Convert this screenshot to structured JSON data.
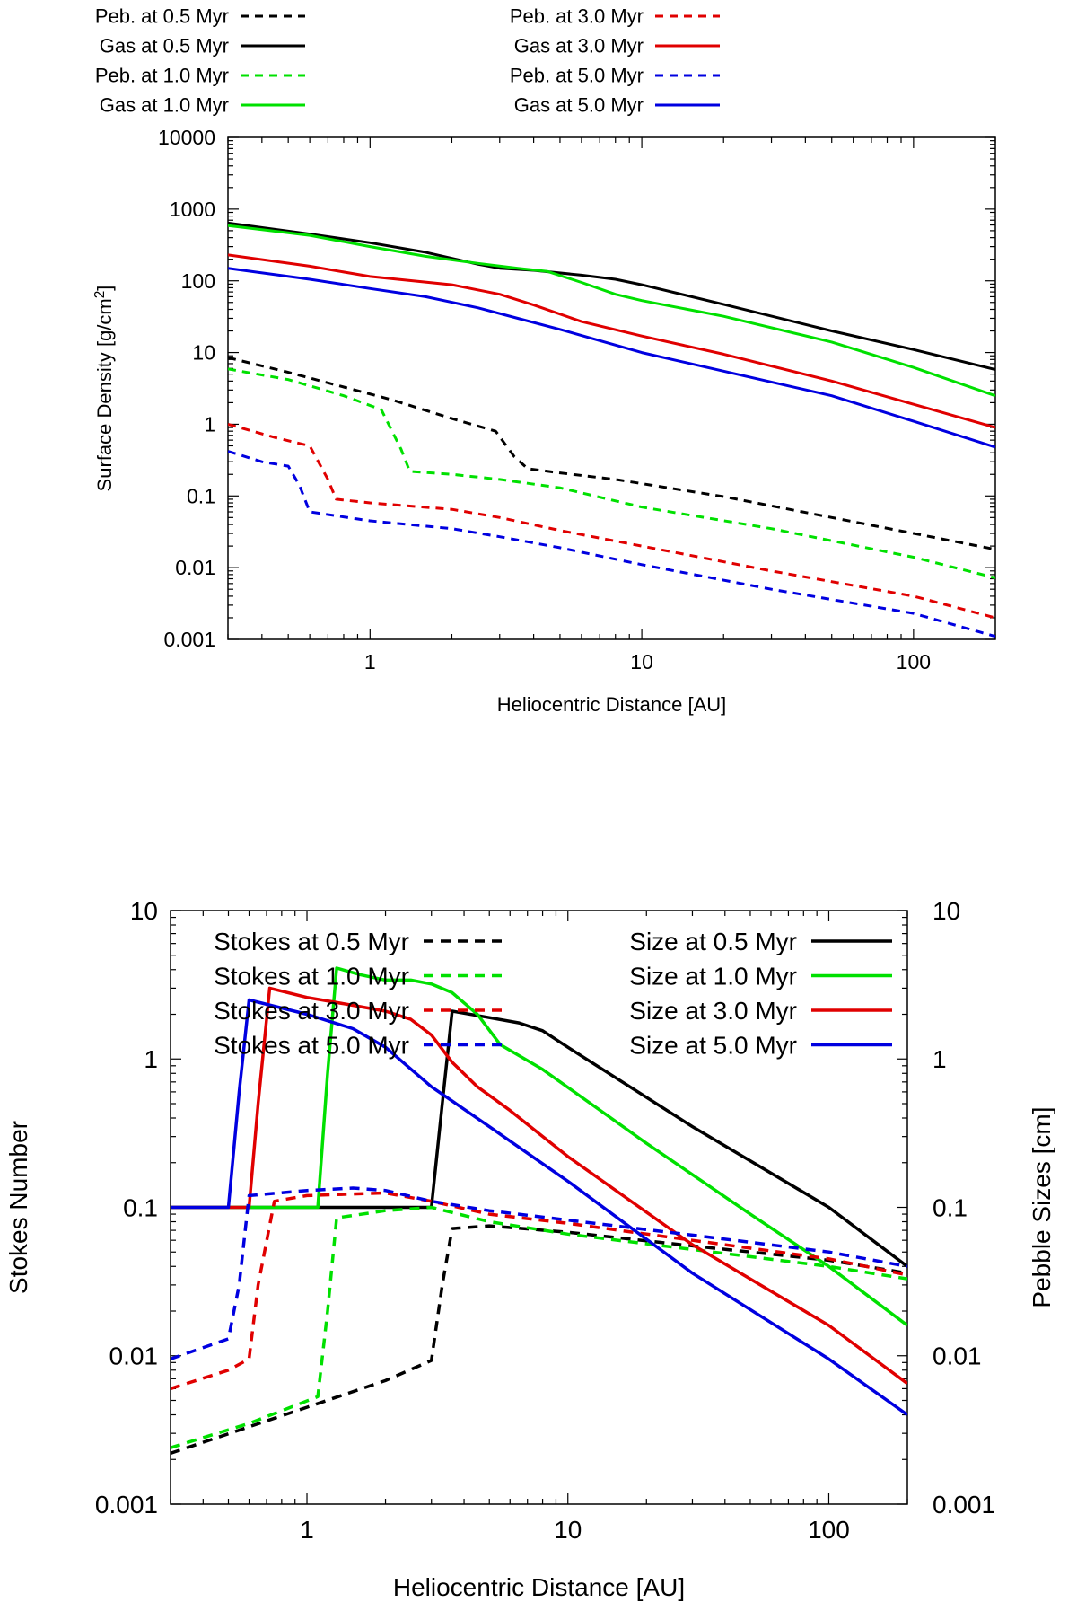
{
  "chart_data": [
    {
      "type": "line",
      "title": "",
      "xlabel": "Heliocentric Distance [AU]",
      "ylabel": "Surface Density [g/cm",
      "ylabel_sup": "2",
      "ylabel_end": "]",
      "xscale": "log",
      "yscale": "log",
      "xlim": [
        0.3,
        200
      ],
      "ylim": [
        0.001,
        10000
      ],
      "x_ticks": [
        {
          "value": 1,
          "label": "1"
        },
        {
          "value": 10,
          "label": "10"
        },
        {
          "value": 100,
          "label": "100"
        }
      ],
      "y_ticks": [
        {
          "value": 0.001,
          "label": "0.001"
        },
        {
          "value": 0.01,
          "label": "0.01"
        },
        {
          "value": 0.1,
          "label": "0.1"
        },
        {
          "value": 1,
          "label": "1"
        },
        {
          "value": 10,
          "label": "10"
        },
        {
          "value": 100,
          "label": "100"
        },
        {
          "value": 1000,
          "label": "1000"
        },
        {
          "value": 10000,
          "label": "10000"
        }
      ],
      "legend_position": "top",
      "series": [
        {
          "name": "Peb. at 0.5 Myr",
          "color": "#000000",
          "style": "dashed",
          "points": [
            [
              0.3,
              8.5
            ],
            [
              0.5,
              5.3
            ],
            [
              0.8,
              3.3
            ],
            [
              1.2,
              2.2
            ],
            [
              2.0,
              1.2
            ],
            [
              2.9,
              0.8
            ],
            [
              3.4,
              0.35
            ],
            [
              3.8,
              0.24
            ],
            [
              5,
              0.21
            ],
            [
              8,
              0.17
            ],
            [
              20,
              0.098
            ],
            [
              50,
              0.05
            ],
            [
              100,
              0.03
            ],
            [
              200,
              0.018
            ]
          ]
        },
        {
          "name": "Gas at 0.5 Myr",
          "color": "#000000",
          "style": "solid",
          "points": [
            [
              0.3,
              640
            ],
            [
              0.6,
              450
            ],
            [
              1,
              340
            ],
            [
              1.6,
              250
            ],
            [
              2.5,
              170
            ],
            [
              3,
              150
            ],
            [
              4,
              140
            ],
            [
              6,
              120
            ],
            [
              8,
              105
            ],
            [
              10,
              88
            ],
            [
              20,
              47
            ],
            [
              50,
              20
            ],
            [
              100,
              11
            ],
            [
              200,
              5.8
            ]
          ]
        },
        {
          "name": "Peb. at 1.0 Myr",
          "color": "#00e000",
          "style": "dashed",
          "points": [
            [
              0.3,
              5.9
            ],
            [
              0.5,
              4.2
            ],
            [
              0.8,
              2.5
            ],
            [
              1.1,
              1.6
            ],
            [
              1.3,
              0.45
            ],
            [
              1.4,
              0.22
            ],
            [
              2,
              0.2
            ],
            [
              3,
              0.17
            ],
            [
              5,
              0.13
            ],
            [
              10,
              0.07
            ],
            [
              30,
              0.035
            ],
            [
              100,
              0.014
            ],
            [
              200,
              0.0072
            ]
          ]
        },
        {
          "name": "Gas at 1.0 Myr",
          "color": "#00e000",
          "style": "solid",
          "points": [
            [
              0.3,
              590
            ],
            [
              0.6,
              430
            ],
            [
              1,
              300
            ],
            [
              1.6,
              220
            ],
            [
              2.5,
              175
            ],
            [
              3.5,
              150
            ],
            [
              4.5,
              135
            ],
            [
              6,
              95
            ],
            [
              8,
              65
            ],
            [
              10,
              53
            ],
            [
              20,
              32
            ],
            [
              50,
              14
            ],
            [
              100,
              6.2
            ],
            [
              200,
              2.5
            ]
          ]
        },
        {
          "name": "Peb. at 3.0 Myr",
          "color": "#e00000",
          "style": "dashed",
          "points": [
            [
              0.3,
              1.0
            ],
            [
              0.45,
              0.65
            ],
            [
              0.6,
              0.5
            ],
            [
              0.7,
              0.17
            ],
            [
              0.75,
              0.09
            ],
            [
              1,
              0.08
            ],
            [
              2,
              0.065
            ],
            [
              3,
              0.05
            ],
            [
              5,
              0.033
            ],
            [
              10,
              0.02
            ],
            [
              30,
              0.009
            ],
            [
              100,
              0.004
            ],
            [
              200,
              0.002
            ]
          ]
        },
        {
          "name": "Gas at 3.0 Myr",
          "color": "#e00000",
          "style": "solid",
          "points": [
            [
              0.3,
              230
            ],
            [
              0.6,
              160
            ],
            [
              1,
              115
            ],
            [
              2,
              88
            ],
            [
              3,
              65
            ],
            [
              4,
              46
            ],
            [
              6,
              27
            ],
            [
              10,
              17
            ],
            [
              20,
              9.5
            ],
            [
              50,
              4
            ],
            [
              100,
              1.9
            ],
            [
              200,
              0.9
            ]
          ]
        },
        {
          "name": "Peb. at 5.0 Myr",
          "color": "#0000e0",
          "style": "dashed",
          "points": [
            [
              0.3,
              0.42
            ],
            [
              0.4,
              0.3
            ],
            [
              0.5,
              0.26
            ],
            [
              0.55,
              0.14
            ],
            [
              0.6,
              0.06
            ],
            [
              1,
              0.045
            ],
            [
              2,
              0.035
            ],
            [
              3,
              0.027
            ],
            [
              5,
              0.019
            ],
            [
              10,
              0.011
            ],
            [
              30,
              0.005
            ],
            [
              100,
              0.0023
            ],
            [
              200,
              0.0011
            ]
          ]
        },
        {
          "name": "Gas at 5.0 Myr",
          "color": "#0000e0",
          "style": "solid",
          "points": [
            [
              0.3,
              150
            ],
            [
              0.6,
              105
            ],
            [
              1,
              78
            ],
            [
              1.6,
              60
            ],
            [
              2.5,
              42
            ],
            [
              3.5,
              30
            ],
            [
              5,
              21
            ],
            [
              10,
              10
            ],
            [
              20,
              5.5
            ],
            [
              50,
              2.5
            ],
            [
              100,
              1.1
            ],
            [
              200,
              0.48
            ]
          ]
        }
      ]
    },
    {
      "type": "line",
      "title": "",
      "xlabel": "Heliocentric Distance [AU]",
      "ylabel": "Stokes Number",
      "y2label": "Pebble Sizes [cm]",
      "xscale": "log",
      "yscale": "log",
      "xlim": [
        0.3,
        200
      ],
      "ylim": [
        0.001,
        10
      ],
      "y2lim": [
        0.001,
        10
      ],
      "x_ticks": [
        {
          "value": 1,
          "label": "1"
        },
        {
          "value": 10,
          "label": "10"
        },
        {
          "value": 100,
          "label": "100"
        }
      ],
      "y_ticks": [
        {
          "value": 0.001,
          "label": "0.001"
        },
        {
          "value": 0.01,
          "label": "0.01"
        },
        {
          "value": 0.1,
          "label": "0.1"
        },
        {
          "value": 1,
          "label": "1"
        },
        {
          "value": 10,
          "label": "10"
        }
      ],
      "y2_ticks": [
        {
          "value": 0.001,
          "label": "0.001"
        },
        {
          "value": 0.01,
          "label": "0.01"
        },
        {
          "value": 0.1,
          "label": "0.1"
        },
        {
          "value": 1,
          "label": "1"
        },
        {
          "value": 10,
          "label": "10"
        }
      ],
      "legend_position": "top",
      "series": [
        {
          "name": "Stokes at 0.5 Myr",
          "color": "#000000",
          "style": "dashed",
          "points": [
            [
              0.3,
              0.0022
            ],
            [
              1,
              0.0045
            ],
            [
              2,
              0.0068
            ],
            [
              3,
              0.0093
            ],
            [
              3.3,
              0.03
            ],
            [
              3.6,
              0.072
            ],
            [
              5,
              0.075
            ],
            [
              10,
              0.068
            ],
            [
              30,
              0.055
            ],
            [
              100,
              0.044
            ],
            [
              200,
              0.036
            ]
          ]
        },
        {
          "name": "Size at 0.5 Myr",
          "color": "#000000",
          "style": "solid",
          "points": [
            [
              0.3,
              0.1
            ],
            [
              1,
              0.1
            ],
            [
              3,
              0.1
            ],
            [
              3.3,
              0.5
            ],
            [
              3.6,
              2.1
            ],
            [
              5,
              1.9
            ],
            [
              6.5,
              1.75
            ],
            [
              8,
              1.55
            ],
            [
              10,
              1.2
            ],
            [
              30,
              0.35
            ],
            [
              100,
              0.1
            ],
            [
              200,
              0.04
            ]
          ]
        },
        {
          "name": "Stokes at 1.0 Myr",
          "color": "#00e000",
          "style": "dashed",
          "points": [
            [
              0.3,
              0.0024
            ],
            [
              0.6,
              0.0035
            ],
            [
              1.1,
              0.0053
            ],
            [
              1.2,
              0.02
            ],
            [
              1.3,
              0.085
            ],
            [
              2,
              0.095
            ],
            [
              3,
              0.1
            ],
            [
              5,
              0.08
            ],
            [
              10,
              0.066
            ],
            [
              30,
              0.052
            ],
            [
              100,
              0.04
            ],
            [
              200,
              0.033
            ]
          ]
        },
        {
          "name": "Size at 1.0 Myr",
          "color": "#00e000",
          "style": "solid",
          "points": [
            [
              0.3,
              0.1
            ],
            [
              1.1,
              0.1
            ],
            [
              1.2,
              0.8
            ],
            [
              1.3,
              4.1
            ],
            [
              1.6,
              3.7
            ],
            [
              2,
              3.4
            ],
            [
              2.5,
              3.4
            ],
            [
              3,
              3.2
            ],
            [
              3.6,
              2.8
            ],
            [
              4.5,
              2.0
            ],
            [
              5.5,
              1.25
            ],
            [
              8,
              0.85
            ],
            [
              20,
              0.27
            ],
            [
              50,
              0.09
            ],
            [
              100,
              0.04
            ],
            [
              200,
              0.016
            ]
          ]
        },
        {
          "name": "Stokes at 3.0 Myr",
          "color": "#e00000",
          "style": "dashed",
          "points": [
            [
              0.3,
              0.006
            ],
            [
              0.5,
              0.008
            ],
            [
              0.6,
              0.0095
            ],
            [
              0.65,
              0.03
            ],
            [
              0.75,
              0.11
            ],
            [
              1,
              0.12
            ],
            [
              2,
              0.125
            ],
            [
              3,
              0.11
            ],
            [
              5,
              0.09
            ],
            [
              10,
              0.078
            ],
            [
              30,
              0.06
            ],
            [
              100,
              0.045
            ],
            [
              200,
              0.035
            ]
          ]
        },
        {
          "name": "Size at 3.0 Myr",
          "color": "#e00000",
          "style": "solid",
          "points": [
            [
              0.3,
              0.1
            ],
            [
              0.6,
              0.1
            ],
            [
              0.65,
              0.5
            ],
            [
              0.72,
              3.0
            ],
            [
              1,
              2.6
            ],
            [
              1.5,
              2.3
            ],
            [
              2,
              2.1
            ],
            [
              2.5,
              1.85
            ],
            [
              3,
              1.45
            ],
            [
              3.6,
              0.95
            ],
            [
              4.5,
              0.65
            ],
            [
              6,
              0.45
            ],
            [
              10,
              0.22
            ],
            [
              30,
              0.056
            ],
            [
              100,
              0.016
            ],
            [
              200,
              0.0065
            ]
          ]
        },
        {
          "name": "Stokes at 5.0 Myr",
          "color": "#0000e0",
          "style": "dashed",
          "points": [
            [
              0.3,
              0.0095
            ],
            [
              0.5,
              0.013
            ],
            [
              0.55,
              0.03
            ],
            [
              0.6,
              0.12
            ],
            [
              1,
              0.13
            ],
            [
              1.5,
              0.135
            ],
            [
              2,
              0.13
            ],
            [
              3,
              0.11
            ],
            [
              5,
              0.095
            ],
            [
              10,
              0.082
            ],
            [
              30,
              0.065
            ],
            [
              100,
              0.05
            ],
            [
              200,
              0.04
            ]
          ]
        },
        {
          "name": "Size at 5.0 Myr",
          "color": "#0000e0",
          "style": "solid",
          "points": [
            [
              0.3,
              0.1
            ],
            [
              0.5,
              0.1
            ],
            [
              0.55,
              0.6
            ],
            [
              0.6,
              2.5
            ],
            [
              1,
              2.0
            ],
            [
              1.5,
              1.6
            ],
            [
              2,
              1.2
            ],
            [
              3,
              0.65
            ],
            [
              5,
              0.35
            ],
            [
              10,
              0.15
            ],
            [
              30,
              0.036
            ],
            [
              100,
              0.0095
            ],
            [
              200,
              0.004
            ]
          ]
        }
      ]
    }
  ]
}
